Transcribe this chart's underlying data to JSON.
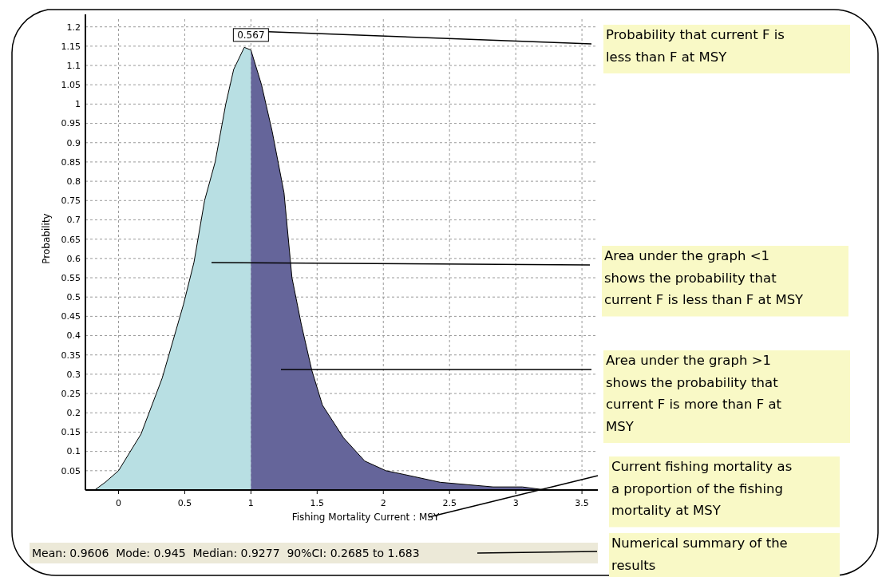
{
  "chart_data": {
    "type": "area",
    "xlabel": "Fishing Mortality Current : MSY",
    "ylabel": "Probability",
    "xlim": [
      -0.25,
      3.62
    ],
    "ylim": [
      0,
      1.22
    ],
    "xticks": [
      0,
      0.5,
      1,
      1.5,
      2,
      2.5,
      3,
      3.5
    ],
    "yticks": [
      0.05,
      0.1,
      0.15,
      0.2,
      0.25,
      0.3,
      0.35,
      0.4,
      0.45,
      0.5,
      0.55,
      0.6,
      0.65,
      0.7,
      0.75,
      0.8,
      0.85,
      0.9,
      0.95,
      1,
      1.05,
      1.1,
      1.15,
      1.2
    ],
    "grid": true,
    "series": [
      {
        "color": "#b8dfe3",
        "x": [
          -0.18,
          -0.1,
          0,
          0.17,
          0.33,
          0.49,
          0.57,
          0.65,
          0.73,
          0.81,
          0.87,
          0.95,
          1
        ],
        "values": [
          0,
          0.02,
          0.05,
          0.145,
          0.29,
          0.48,
          0.59,
          0.75,
          0.85,
          1,
          1.09,
          1.147,
          1.14
        ]
      },
      {
        "color": "#65659a",
        "x": [
          1,
          1.08,
          1.16,
          1.25,
          1.31,
          1.38,
          1.46,
          1.54,
          1.7,
          1.86,
          2.02,
          2.16,
          2.43,
          2.83,
          3.05,
          3.23,
          3.4
        ],
        "values": [
          1.14,
          1.05,
          0.93,
          0.77,
          0.55,
          0.43,
          0.31,
          0.22,
          0.135,
          0.075,
          0.05,
          0.04,
          0.02,
          0.008,
          0.008,
          0,
          0
        ]
      }
    ],
    "annotations": [
      {
        "text": "0.567",
        "x": 1,
        "y": 1.15
      },
      "Probability that current F is\nless than F at MSY",
      "Area under the graph <1\nshows the probability that\ncurrent F is less than F at MSY",
      "Area under the graph >1\nshows the probability that\ncurrent F is more than F at\nMSY",
      "Current fishing mortality as\na proportion of the fishing\nmortality at MSY",
      "Numerical summary of the\nresults",
      "Mean: 0.9606  Mode: 0.945  Median: 0.9277  90%CI: 0.2685 to 1.683"
    ]
  }
}
